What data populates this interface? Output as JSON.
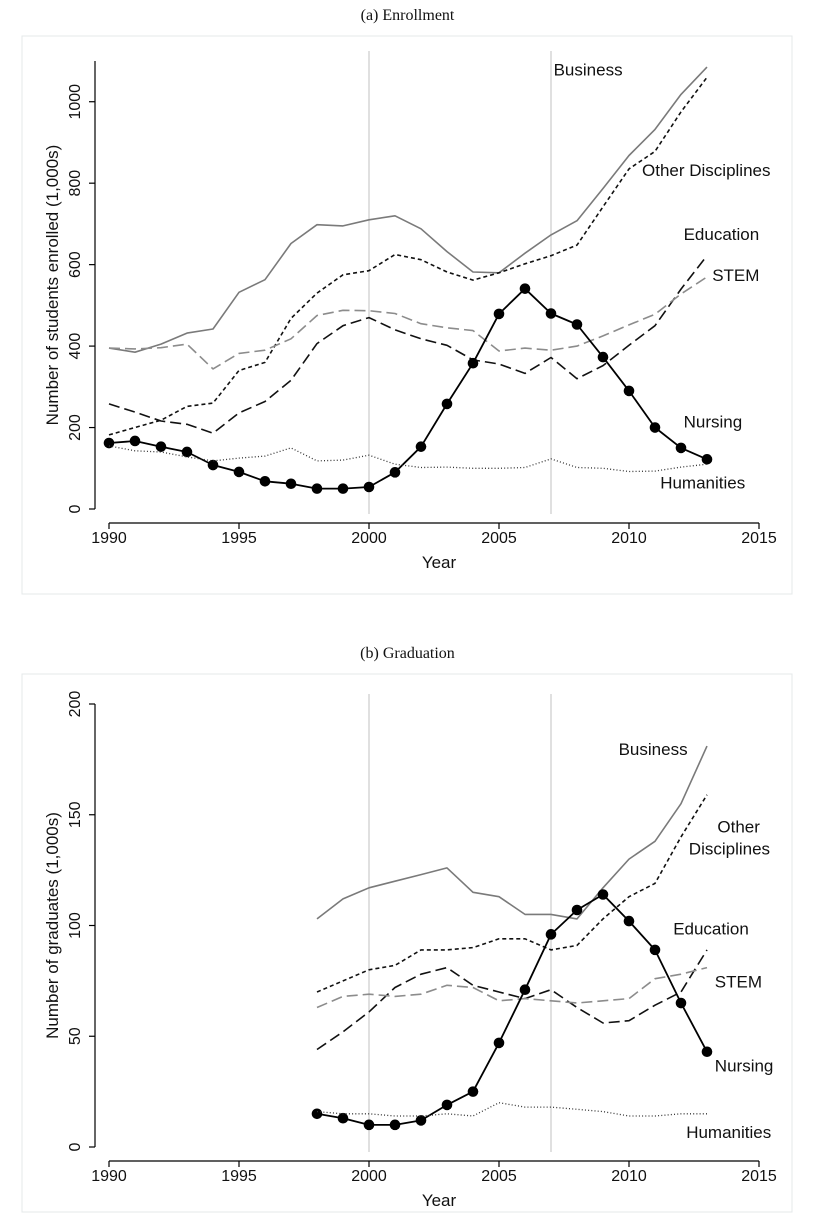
{
  "chart_data": [
    {
      "type": "line",
      "title": "(a) Enrollment",
      "xlabel": "Year",
      "ylabel": "Number of students enrolled (1,000s)",
      "xlim": [
        1990,
        2015
      ],
      "ylim": [
        0,
        1100
      ],
      "xticks": [
        1990,
        1995,
        2000,
        2005,
        2010,
        2015
      ],
      "yticks": [
        0,
        200,
        400,
        600,
        800,
        1000
      ],
      "vlines": [
        2000,
        2007
      ],
      "grid": false,
      "series": [
        {
          "name": "Business",
          "style": "solid-gray",
          "color": "#7a7a7a",
          "x": [
            1990,
            1991,
            1992,
            1993,
            1994,
            1995,
            1996,
            1997,
            1998,
            1999,
            2000,
            2001,
            2002,
            2003,
            2004,
            2005,
            2006,
            2007,
            2008,
            2009,
            2010,
            2011,
            2012,
            2013
          ],
          "y": [
            395,
            385,
            405,
            432,
            442,
            532,
            563,
            652,
            698,
            695,
            710,
            720,
            688,
            632,
            582,
            580,
            628,
            673,
            708,
            787,
            868,
            932,
            1018,
            1085
          ]
        },
        {
          "name": "Other Disciplines",
          "style": "short-dash",
          "color": "#111111",
          "x": [
            1990,
            1991,
            1992,
            1993,
            1994,
            1995,
            1996,
            1997,
            1998,
            1999,
            2000,
            2001,
            2002,
            2003,
            2004,
            2005,
            2006,
            2007,
            2008,
            2009,
            2010,
            2011,
            2012,
            2013
          ],
          "y": [
            182,
            200,
            218,
            252,
            260,
            340,
            360,
            468,
            530,
            575,
            585,
            625,
            612,
            582,
            562,
            580,
            602,
            622,
            648,
            742,
            835,
            878,
            975,
            1060
          ]
        },
        {
          "name": "Education",
          "style": "long-dash",
          "color": "#111111",
          "x": [
            1990,
            1991,
            1992,
            1993,
            1994,
            1995,
            1996,
            1997,
            1998,
            1999,
            2000,
            2001,
            2002,
            2003,
            2004,
            2005,
            2006,
            2007,
            2008,
            2009,
            2010,
            2011,
            2012,
            2013
          ],
          "y": [
            258,
            238,
            216,
            208,
            186,
            236,
            264,
            316,
            406,
            450,
            470,
            440,
            418,
            402,
            366,
            356,
            333,
            372,
            320,
            352,
            402,
            450,
            540,
            622
          ]
        },
        {
          "name": "STEM",
          "style": "long-dash-gray",
          "color": "#8c8c8c",
          "x": [
            1990,
            1991,
            1992,
            1993,
            1994,
            1995,
            1996,
            1997,
            1998,
            1999,
            2000,
            2001,
            2002,
            2003,
            2004,
            2005,
            2006,
            2007,
            2008,
            2009,
            2010,
            2011,
            2012,
            2013
          ],
          "y": [
            395,
            393,
            396,
            405,
            344,
            382,
            390,
            418,
            475,
            488,
            487,
            480,
            455,
            445,
            438,
            388,
            395,
            390,
            400,
            425,
            452,
            478,
            528,
            570
          ]
        },
        {
          "name": "Nursing",
          "style": "solid-markers",
          "color": "#000000",
          "x": [
            1990,
            1991,
            1992,
            1993,
            1994,
            1995,
            1996,
            1997,
            1998,
            1999,
            2000,
            2001,
            2002,
            2003,
            2004,
            2005,
            2006,
            2007,
            2008,
            2009,
            2010,
            2011,
            2012,
            2013
          ],
          "y": [
            162,
            167,
            153,
            140,
            108,
            91,
            68,
            62,
            50,
            50,
            54,
            90,
            153,
            258,
            358,
            479,
            541,
            480,
            453,
            373,
            290,
            200,
            150,
            122
          ]
        },
        {
          "name": "Humanities",
          "style": "dotted",
          "color": "#333333",
          "x": [
            1990,
            1991,
            1992,
            1993,
            1994,
            1995,
            1996,
            1997,
            1998,
            1999,
            2000,
            2001,
            2002,
            2003,
            2004,
            2005,
            2006,
            2007,
            2008,
            2009,
            2010,
            2011,
            2012,
            2013
          ],
          "y": [
            155,
            143,
            140,
            128,
            118,
            125,
            130,
            150,
            118,
            120,
            132,
            110,
            102,
            103,
            100,
            100,
            102,
            123,
            102,
            100,
            92,
            93,
            103,
            110
          ]
        }
      ],
      "annotations": [
        {
          "text": "Business",
          "x": 2007.1,
          "y": 1065
        },
        {
          "text": "Other Disciplines",
          "x": 2010.5,
          "y": 818
        },
        {
          "text": "Education",
          "x": 2012.1,
          "y": 660
        },
        {
          "text": "STEM",
          "x": 2013.2,
          "y": 560
        },
        {
          "text": "Nursing",
          "x": 2012.1,
          "y": 200
        },
        {
          "text": "Humanities",
          "x": 2011.2,
          "y": 50
        }
      ]
    },
    {
      "type": "line",
      "title": "(b) Graduation",
      "xlabel": "Year",
      "ylabel": "Number of graduates (1,000s)",
      "xlim": [
        1990,
        2015
      ],
      "ylim": [
        0,
        200
      ],
      "xticks": [
        1990,
        1995,
        2000,
        2005,
        2010,
        2015
      ],
      "yticks": [
        0,
        50,
        100,
        150,
        200
      ],
      "vlines": [
        2000,
        2007
      ],
      "grid": false,
      "series": [
        {
          "name": "Business",
          "style": "solid-gray",
          "color": "#7a7a7a",
          "x": [
            1998,
            1999,
            2000,
            2001,
            2002,
            2003,
            2004,
            2005,
            2006,
            2007,
            2008,
            2009,
            2010,
            2011,
            2012,
            2013
          ],
          "y": [
            103,
            112,
            117,
            120,
            123,
            126,
            115,
            113,
            105,
            105,
            103,
            117,
            130,
            138,
            155,
            181
          ]
        },
        {
          "name": "Other Disciplines",
          "style": "short-dash",
          "color": "#111111",
          "x": [
            1998,
            1999,
            2000,
            2001,
            2002,
            2003,
            2004,
            2005,
            2006,
            2007,
            2008,
            2009,
            2010,
            2011,
            2012,
            2013
          ],
          "y": [
            70,
            75,
            80,
            82,
            89,
            89,
            90,
            94,
            94,
            89,
            91,
            103,
            113,
            119,
            140,
            159
          ]
        },
        {
          "name": "Education",
          "style": "long-dash",
          "color": "#111111",
          "x": [
            1998,
            1999,
            2000,
            2001,
            2002,
            2003,
            2004,
            2005,
            2006,
            2007,
            2008,
            2009,
            2010,
            2011,
            2012,
            2013
          ],
          "y": [
            44,
            52,
            61,
            72,
            78,
            81,
            73,
            70,
            67,
            71,
            63,
            56,
            57,
            64,
            70,
            89
          ]
        },
        {
          "name": "STEM",
          "style": "long-dash-gray",
          "color": "#8c8c8c",
          "x": [
            1998,
            1999,
            2000,
            2001,
            2002,
            2003,
            2004,
            2005,
            2006,
            2007,
            2008,
            2009,
            2010,
            2011,
            2012,
            2013
          ],
          "y": [
            63,
            68,
            69,
            68,
            69,
            73,
            72,
            66,
            67,
            66,
            65,
            66,
            67,
            76,
            78,
            81
          ]
        },
        {
          "name": "Nursing",
          "style": "solid-markers",
          "color": "#000000",
          "x": [
            1998,
            1999,
            2000,
            2001,
            2002,
            2003,
            2004,
            2005,
            2006,
            2007,
            2008,
            2009,
            2010,
            2011,
            2012,
            2013
          ],
          "y": [
            15,
            13,
            10,
            10,
            12,
            19,
            25,
            47,
            71,
            96,
            107,
            114,
            102,
            89,
            65,
            43
          ]
        },
        {
          "name": "Humanities",
          "style": "dotted",
          "color": "#333333",
          "x": [
            1998,
            1999,
            2000,
            2001,
            2002,
            2003,
            2004,
            2005,
            2006,
            2007,
            2008,
            2009,
            2010,
            2011,
            2012,
            2013
          ],
          "y": [
            16,
            15,
            15,
            14,
            14,
            15,
            14,
            20,
            18,
            18,
            17,
            16,
            14,
            14,
            15,
            15
          ]
        }
      ],
      "annotations": [
        {
          "text": "Business",
          "x": 2009.6,
          "y": 177
        },
        {
          "text": "Other",
          "x": 2013.4,
          "y": 142
        },
        {
          "text": "Disciplines",
          "x": 2012.3,
          "y": 132
        },
        {
          "text": "Education",
          "x": 2011.7,
          "y": 96
        },
        {
          "text": "STEM",
          "x": 2013.3,
          "y": 72
        },
        {
          "text": "Nursing",
          "x": 2013.3,
          "y": 34
        },
        {
          "text": "Humanities",
          "x": 2012.2,
          "y": 4
        }
      ]
    }
  ]
}
